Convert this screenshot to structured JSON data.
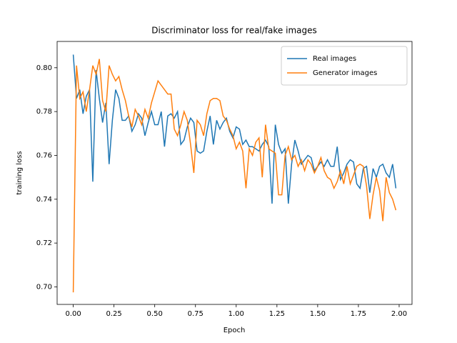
{
  "chart_data": {
    "type": "line",
    "title": "Discriminator loss for real/fake images",
    "xlabel": "Epoch",
    "ylabel": "training loss",
    "x": [
      0,
      0.02,
      0.04,
      0.06,
      0.08,
      0.1,
      0.12,
      0.14,
      0.16,
      0.18,
      0.2,
      0.22,
      0.24,
      0.26,
      0.28,
      0.3,
      0.32,
      0.34,
      0.36,
      0.38,
      0.4,
      0.42,
      0.44,
      0.46,
      0.48,
      0.5,
      0.52,
      0.54,
      0.56,
      0.58,
      0.6,
      0.62,
      0.64,
      0.66,
      0.68,
      0.7,
      0.72,
      0.74,
      0.76,
      0.78,
      0.8,
      0.82,
      0.84,
      0.86,
      0.88,
      0.9,
      0.92,
      0.94,
      0.96,
      0.98,
      1,
      1.02,
      1.04,
      1.06,
      1.08,
      1.1,
      1.12,
      1.14,
      1.16,
      1.18,
      1.2,
      1.22,
      1.24,
      1.26,
      1.28,
      1.3,
      1.32,
      1.34,
      1.36,
      1.38,
      1.4,
      1.42,
      1.44,
      1.46,
      1.48,
      1.5,
      1.52,
      1.54,
      1.56,
      1.58,
      1.6,
      1.62,
      1.64,
      1.66,
      1.68,
      1.7,
      1.72,
      1.74,
      1.76,
      1.78,
      1.8,
      1.82,
      1.84,
      1.86,
      1.88,
      1.9,
      1.92,
      1.94,
      1.96,
      1.98
    ],
    "series": [
      {
        "name": "Real images",
        "color": "#1f77b4",
        "values": [
          0.806,
          0.786,
          0.79,
          0.779,
          0.787,
          0.79,
          0.748,
          0.799,
          0.786,
          0.775,
          0.784,
          0.756,
          0.776,
          0.79,
          0.786,
          0.776,
          0.776,
          0.778,
          0.771,
          0.774,
          0.779,
          0.777,
          0.769,
          0.775,
          0.78,
          0.774,
          0.774,
          0.78,
          0.764,
          0.778,
          0.779,
          0.777,
          0.78,
          0.765,
          0.767,
          0.773,
          0.777,
          0.775,
          0.762,
          0.761,
          0.762,
          0.771,
          0.778,
          0.765,
          0.776,
          0.772,
          0.775,
          0.777,
          0.771,
          0.768,
          0.773,
          0.772,
          0.765,
          0.767,
          0.764,
          0.764,
          0.763,
          0.762,
          0.765,
          0.767,
          0.764,
          0.738,
          0.774,
          0.765,
          0.761,
          0.763,
          0.738,
          0.756,
          0.767,
          0.762,
          0.756,
          0.758,
          0.76,
          0.759,
          0.753,
          0.755,
          0.757,
          0.755,
          0.758,
          0.755,
          0.755,
          0.764,
          0.749,
          0.752,
          0.756,
          0.758,
          0.757,
          0.747,
          0.745,
          0.754,
          0.755,
          0.743,
          0.754,
          0.75,
          0.755,
          0.756,
          0.752,
          0.75,
          0.756,
          0.745
        ]
      },
      {
        "name": "Generator images",
        "color": "#ff7f0e",
        "values": [
          0.6975,
          0.801,
          0.786,
          0.789,
          0.78,
          0.79,
          0.801,
          0.797,
          0.804,
          0.785,
          0.78,
          0.801,
          0.797,
          0.794,
          0.796,
          0.79,
          0.785,
          0.778,
          0.773,
          0.781,
          0.778,
          0.774,
          0.781,
          0.777,
          0.784,
          0.789,
          0.794,
          0.792,
          0.79,
          0.788,
          0.788,
          0.772,
          0.769,
          0.774,
          0.78,
          0.776,
          0.765,
          0.752,
          0.776,
          0.774,
          0.769,
          0.779,
          0.785,
          0.786,
          0.786,
          0.785,
          0.778,
          0.776,
          0.772,
          0.769,
          0.763,
          0.766,
          0.762,
          0.745,
          0.763,
          0.76,
          0.766,
          0.768,
          0.75,
          0.774,
          0.763,
          0.762,
          0.761,
          0.742,
          0.742,
          0.76,
          0.764,
          0.758,
          0.76,
          0.755,
          0.758,
          0.753,
          0.758,
          0.756,
          0.752,
          0.755,
          0.759,
          0.753,
          0.75,
          0.749,
          0.745,
          0.748,
          0.753,
          0.747,
          0.755,
          0.747,
          0.751,
          0.755,
          0.756,
          0.755,
          0.746,
          0.731,
          0.742,
          0.75,
          0.744,
          0.73,
          0.75,
          0.743,
          0.74,
          0.735
        ]
      }
    ],
    "xlim": [
      -0.099,
      2.079
    ],
    "ylim": [
      0.692,
      0.812
    ],
    "xticks": [
      {
        "value": 0,
        "label": "0.00"
      },
      {
        "value": 0.25,
        "label": "0.25"
      },
      {
        "value": 0.5,
        "label": "0.50"
      },
      {
        "value": 0.75,
        "label": "0.75"
      },
      {
        "value": 1,
        "label": "1.00"
      },
      {
        "value": 1.25,
        "label": "1.25"
      },
      {
        "value": 1.5,
        "label": "1.50"
      },
      {
        "value": 1.75,
        "label": "1.75"
      },
      {
        "value": 2,
        "label": "2.00"
      }
    ],
    "yticks": [
      {
        "value": 0.7,
        "label": "0.70"
      },
      {
        "value": 0.72,
        "label": "0.72"
      },
      {
        "value": 0.74,
        "label": "0.74"
      },
      {
        "value": 0.76,
        "label": "0.76"
      },
      {
        "value": 0.78,
        "label": "0.78"
      },
      {
        "value": 0.8,
        "label": "0.80"
      }
    ],
    "legend": "upper right",
    "grid": false
  }
}
